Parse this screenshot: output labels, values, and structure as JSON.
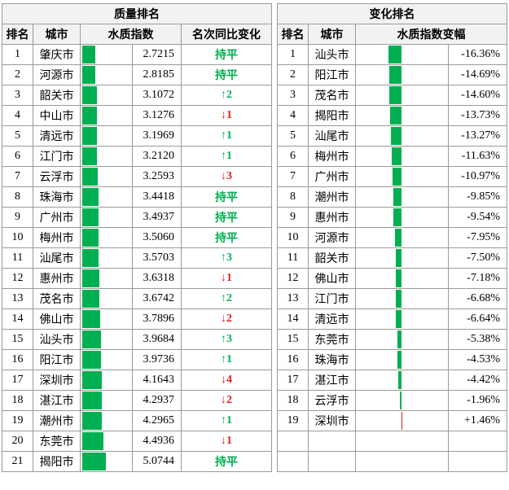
{
  "left": {
    "title": "质量排名",
    "headers": [
      "排名",
      "城市",
      "水质指数",
      "名次同比变化"
    ],
    "rows": [
      {
        "rank": 1,
        "city": "肇庆市",
        "index": 2.7215,
        "index_label": "2.7215",
        "change": "持平"
      },
      {
        "rank": 2,
        "city": "河源市",
        "index": 2.8185,
        "index_label": "2.8185",
        "change": "持平"
      },
      {
        "rank": 3,
        "city": "韶关市",
        "index": 3.1072,
        "index_label": "3.1072",
        "change": "↑2"
      },
      {
        "rank": 4,
        "city": "中山市",
        "index": 3.1276,
        "index_label": "3.1276",
        "change": "↓1"
      },
      {
        "rank": 5,
        "city": "清远市",
        "index": 3.1969,
        "index_label": "3.1969",
        "change": "↑1"
      },
      {
        "rank": 6,
        "city": "江门市",
        "index": 3.212,
        "index_label": "3.2120",
        "change": "↑1"
      },
      {
        "rank": 7,
        "city": "云浮市",
        "index": 3.2593,
        "index_label": "3.2593",
        "change": "↓3"
      },
      {
        "rank": 8,
        "city": "珠海市",
        "index": 3.4418,
        "index_label": "3.4418",
        "change": "持平"
      },
      {
        "rank": 9,
        "city": "广州市",
        "index": 3.4937,
        "index_label": "3.4937",
        "change": "持平"
      },
      {
        "rank": 10,
        "city": "梅州市",
        "index": 3.506,
        "index_label": "3.5060",
        "change": "持平"
      },
      {
        "rank": 11,
        "city": "汕尾市",
        "index": 3.5703,
        "index_label": "3.5703",
        "change": "↑3"
      },
      {
        "rank": 12,
        "city": "惠州市",
        "index": 3.6318,
        "index_label": "3.6318",
        "change": "↓1"
      },
      {
        "rank": 13,
        "city": "茂名市",
        "index": 3.6742,
        "index_label": "3.6742",
        "change": "↑2"
      },
      {
        "rank": 14,
        "city": "佛山市",
        "index": 3.7896,
        "index_label": "3.7896",
        "change": "↓2"
      },
      {
        "rank": 15,
        "city": "汕头市",
        "index": 3.9684,
        "index_label": "3.9684",
        "change": "↑3"
      },
      {
        "rank": 16,
        "city": "阳江市",
        "index": 3.9736,
        "index_label": "3.9736",
        "change": "↑1"
      },
      {
        "rank": 17,
        "city": "深圳市",
        "index": 4.1643,
        "index_label": "4.1643",
        "change": "↓4"
      },
      {
        "rank": 18,
        "city": "湛江市",
        "index": 4.2937,
        "index_label": "4.2937",
        "change": "↓2"
      },
      {
        "rank": 19,
        "city": "潮州市",
        "index": 4.2965,
        "index_label": "4.2965",
        "change": "↑1"
      },
      {
        "rank": 20,
        "city": "东莞市",
        "index": 4.4936,
        "index_label": "4.4936",
        "change": "↓1"
      },
      {
        "rank": 21,
        "city": "揭阳市",
        "index": 5.0744,
        "index_label": "5.0744",
        "change": "持平"
      }
    ]
  },
  "right": {
    "title": "变化排名",
    "headers": [
      "排名",
      "城市",
      "水质指数变幅"
    ],
    "rows": [
      {
        "rank": 1,
        "city": "汕头市",
        "change": -16.36,
        "change_label": "-16.36%"
      },
      {
        "rank": 2,
        "city": "阳江市",
        "change": -14.69,
        "change_label": "-14.69%"
      },
      {
        "rank": 3,
        "city": "茂名市",
        "change": -14.6,
        "change_label": "-14.60%"
      },
      {
        "rank": 4,
        "city": "揭阳市",
        "change": -13.73,
        "change_label": "-13.73%"
      },
      {
        "rank": 5,
        "city": "汕尾市",
        "change": -13.27,
        "change_label": "-13.27%"
      },
      {
        "rank": 6,
        "city": "梅州市",
        "change": -11.63,
        "change_label": "-11.63%"
      },
      {
        "rank": 7,
        "city": "广州市",
        "change": -10.97,
        "change_label": "-10.97%"
      },
      {
        "rank": 8,
        "city": "潮州市",
        "change": -9.85,
        "change_label": "-9.85%"
      },
      {
        "rank": 9,
        "city": "惠州市",
        "change": -9.54,
        "change_label": "-9.54%"
      },
      {
        "rank": 10,
        "city": "河源市",
        "change": -7.95,
        "change_label": "-7.95%"
      },
      {
        "rank": 11,
        "city": "韶关市",
        "change": -7.5,
        "change_label": "-7.50%"
      },
      {
        "rank": 12,
        "city": "佛山市",
        "change": -7.18,
        "change_label": "-7.18%"
      },
      {
        "rank": 13,
        "city": "江门市",
        "change": -6.68,
        "change_label": "-6.68%"
      },
      {
        "rank": 14,
        "city": "清远市",
        "change": -6.64,
        "change_label": "-6.64%"
      },
      {
        "rank": 15,
        "city": "东莞市",
        "change": -5.38,
        "change_label": "-5.38%"
      },
      {
        "rank": 16,
        "city": "珠海市",
        "change": -4.53,
        "change_label": "-4.53%"
      },
      {
        "rank": 17,
        "city": "湛江市",
        "change": -4.42,
        "change_label": "-4.42%"
      },
      {
        "rank": 18,
        "city": "云浮市",
        "change": -1.96,
        "change_label": "-1.96%"
      },
      {
        "rank": 19,
        "city": "深圳市",
        "change": 1.46,
        "change_label": "+1.46%"
      }
    ]
  }
}
